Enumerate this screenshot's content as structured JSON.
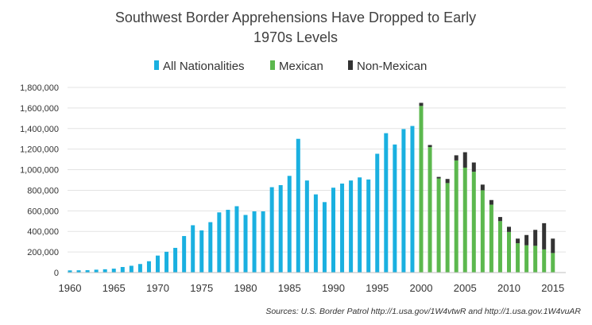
{
  "chart_data": {
    "type": "bar",
    "title_lines": [
      "Southwest Border Apprehensions Have Dropped to Early",
      "1970s Levels"
    ],
    "source": "Sources: U.S. Border Patrol http://1.usa.gov/1W4vtwR and http://1.usa.gov.1W4vuAR",
    "xlabel": "",
    "ylabel": "",
    "ylim": [
      0,
      1800000
    ],
    "yticks": [
      0,
      200000,
      400000,
      600000,
      800000,
      1000000,
      1200000,
      1400000,
      1600000,
      1800000
    ],
    "ytick_labels": [
      "0",
      "200,000",
      "400,000",
      "600,000",
      "800,000",
      "1,000,000",
      "1,200,000",
      "1,400,000",
      "1,600,000",
      "1,800,000"
    ],
    "xticks": [
      1960,
      1965,
      1970,
      1975,
      1980,
      1985,
      1990,
      1995,
      2000,
      2005,
      2010,
      2015
    ],
    "xtick_labels": [
      "1960",
      "1965",
      "1970",
      "1975",
      "1980",
      "1985",
      "1990",
      "1995",
      "2000",
      "2005",
      "2010",
      "2015"
    ],
    "legend_position": "top",
    "grid": true,
    "series": [
      {
        "name": "All Nationalities",
        "color": "#1ab0e0",
        "x": [
          1960,
          1961,
          1962,
          1963,
          1964,
          1965,
          1966,
          1967,
          1968,
          1969,
          1970,
          1971,
          1972,
          1973,
          1974,
          1975,
          1976,
          1977,
          1978,
          1979,
          1980,
          1981,
          1982,
          1983,
          1984,
          1985,
          1986,
          1987,
          1988,
          1989,
          1990,
          1991,
          1992,
          1993,
          1994,
          1995,
          1996,
          1997,
          1998,
          1999
        ],
        "values": [
          21000,
          22000,
          23000,
          28000,
          32000,
          38000,
          54000,
          66000,
          83000,
          110000,
          165000,
          202000,
          240000,
          355000,
          460000,
          410000,
          490000,
          585000,
          610000,
          645000,
          560000,
          595000,
          595000,
          830000,
          850000,
          940000,
          1300000,
          895000,
          760000,
          685000,
          825000,
          865000,
          895000,
          925000,
          905000,
          1155000,
          1355000,
          1245000,
          1395000,
          1425000
        ]
      },
      {
        "name": "Mexican",
        "color": "#5cb84e",
        "x": [
          2000,
          2001,
          2002,
          2003,
          2004,
          2005,
          2006,
          2007,
          2008,
          2009,
          2010,
          2011,
          2012,
          2013,
          2014,
          2015
        ],
        "values": [
          1620000,
          1220000,
          915000,
          870000,
          1090000,
          1020000,
          980000,
          800000,
          660000,
          500000,
          395000,
          285000,
          265000,
          260000,
          225000,
          190000
        ]
      },
      {
        "name": "Non-Mexican",
        "color": "#333333",
        "x": [
          2000,
          2001,
          2002,
          2003,
          2004,
          2005,
          2006,
          2007,
          2008,
          2009,
          2010,
          2011,
          2012,
          2013,
          2014,
          2015
        ],
        "values": [
          30000,
          20000,
          15000,
          40000,
          50000,
          150000,
          90000,
          55000,
          45000,
          40000,
          50000,
          45000,
          100000,
          155000,
          255000,
          140000
        ]
      }
    ]
  }
}
